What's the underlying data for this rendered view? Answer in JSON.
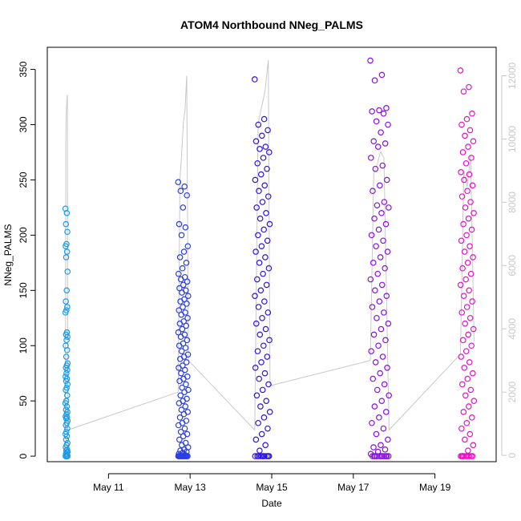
{
  "chart_data": {
    "type": "scatter",
    "title": "ATOM4 Northbound NNeg_PALMS",
    "xlabel": "Date",
    "ylabel": "NNeg_PALMS",
    "xlim": [
      "2018-05-09T12:00",
      "2018-05-20T12:00"
    ],
    "ylim": [
      -5,
      370
    ],
    "y2lim": [
      -200,
      12900
    ],
    "x_ticks": [
      {
        "date": "2018-05-11",
        "label": "May 11"
      },
      {
        "date": "2018-05-13",
        "label": "May 13"
      },
      {
        "date": "2018-05-15",
        "label": "May 15"
      },
      {
        "date": "2018-05-17",
        "label": "May 17"
      },
      {
        "date": "2018-05-19",
        "label": "May 19"
      }
    ],
    "y_ticks": [
      0,
      50,
      100,
      150,
      200,
      250,
      300,
      350
    ],
    "y2_ticks": [
      0,
      2000,
      4000,
      6000,
      8000,
      10000,
      12000
    ],
    "grid": false,
    "legend": "none",
    "colors": {
      "series_1": "#1e9be8",
      "series_2": "#2a3fe0",
      "series_3": "#2f14e6",
      "series_4": "#8a10e8",
      "series_5": "#e812c8",
      "line": "#c8c8c8",
      "axis": "#000000",
      "axis_right": "#c8c8c8"
    },
    "series": [
      {
        "x_start": "2018-05-09T22:40",
        "x_end": "2018-05-10T00:00",
        "values": [
          224,
          220,
          210,
          203,
          192,
          190,
          185,
          180,
          167,
          150,
          140,
          135,
          132,
          130,
          112,
          110,
          108,
          105,
          100,
          96,
          90,
          84,
          82,
          80,
          78,
          75,
          72,
          70,
          68,
          65,
          62,
          60,
          55,
          50,
          48,
          45,
          42,
          40,
          38,
          36,
          35,
          34,
          32,
          30,
          28,
          25,
          22,
          20,
          18,
          15,
          12,
          10,
          8,
          6,
          5,
          4,
          3,
          2,
          1,
          0,
          0,
          0,
          0,
          0
        ]
      },
      {
        "x_start": "2018-05-12T17:00",
        "x_end": "2018-05-12T23:00",
        "values": [
          248,
          244,
          240,
          236,
          225,
          210,
          207,
          200,
          190,
          185,
          180,
          175,
          170,
          165,
          162,
          160,
          158,
          155,
          152,
          150,
          148,
          145,
          142,
          140,
          138,
          135,
          132,
          130,
          128,
          125,
          122,
          120,
          118,
          115,
          112,
          110,
          108,
          105,
          102,
          100,
          98,
          95,
          92,
          90,
          88,
          85,
          82,
          80,
          78,
          75,
          72,
          70,
          68,
          65,
          62,
          60,
          58,
          55,
          52,
          50,
          48,
          45,
          42,
          40,
          38,
          35,
          32,
          30,
          28,
          25,
          22,
          20,
          18,
          15,
          12,
          10,
          8,
          6,
          5,
          4,
          3,
          2,
          1,
          0,
          0,
          0,
          0,
          0,
          0,
          0,
          0,
          0,
          0,
          0,
          0,
          0
        ]
      },
      {
        "x_start": "2018-05-14T14:00",
        "x_end": "2018-05-14T23:00",
        "values": [
          341,
          305,
          300,
          295,
          290,
          285,
          280,
          278,
          275,
          270,
          265,
          260,
          255,
          250,
          245,
          240,
          235,
          230,
          225,
          220,
          215,
          210,
          205,
          200,
          195,
          190,
          185,
          180,
          175,
          170,
          165,
          160,
          155,
          150,
          145,
          140,
          135,
          130,
          125,
          120,
          115,
          110,
          105,
          100,
          95,
          90,
          85,
          80,
          75,
          70,
          65,
          60,
          55,
          50,
          45,
          40,
          35,
          30,
          25,
          20,
          15,
          10,
          5,
          0,
          0,
          0,
          0,
          0,
          0,
          0,
          0,
          0,
          0
        ]
      },
      {
        "x_start": "2018-05-17T10:00",
        "x_end": "2018-05-17T21:00",
        "values": [
          358,
          345,
          340,
          315,
          313,
          312,
          310,
          303,
          300,
          293,
          285,
          283,
          280,
          270,
          263,
          260,
          250,
          245,
          240,
          230,
          227,
          225,
          220,
          215,
          210,
          205,
          200,
          195,
          190,
          185,
          180,
          175,
          170,
          165,
          160,
          155,
          150,
          145,
          140,
          135,
          130,
          125,
          120,
          115,
          110,
          105,
          100,
          95,
          90,
          85,
          80,
          75,
          70,
          65,
          60,
          55,
          50,
          45,
          40,
          35,
          30,
          25,
          20,
          15,
          10,
          8,
          6,
          4,
          2,
          0,
          0,
          0,
          0,
          0,
          0,
          0,
          0,
          0,
          0,
          0
        ]
      },
      {
        "x_start": "2018-05-19T15:00",
        "x_end": "2018-05-19T23:00",
        "values": [
          349,
          334,
          330,
          310,
          305,
          300,
          295,
          290,
          285,
          280,
          275,
          270,
          265,
          257,
          255,
          250,
          245,
          240,
          235,
          230,
          225,
          220,
          215,
          210,
          205,
          200,
          195,
          190,
          185,
          180,
          175,
          170,
          165,
          160,
          155,
          150,
          145,
          140,
          135,
          130,
          125,
          120,
          115,
          110,
          105,
          100,
          95,
          90,
          85,
          80,
          75,
          70,
          65,
          60,
          55,
          50,
          45,
          40,
          35,
          30,
          25,
          20,
          15,
          10,
          5,
          0,
          0,
          0,
          0,
          0,
          0,
          0,
          0,
          0
        ]
      }
    ],
    "line_series": {
      "axis": "right",
      "points": [
        {
          "x": "2018-05-09T22:40",
          "y": 800
        },
        {
          "x": "2018-05-09T22:55",
          "y": 10200
        },
        {
          "x": "2018-05-09T23:10",
          "y": 10800
        },
        {
          "x": "2018-05-09T23:30",
          "y": 11200
        },
        {
          "x": "2018-05-09T23:50",
          "y": 11400
        },
        {
          "x": "2018-05-10T00:00",
          "y": 800
        },
        {
          "x": "2018-05-12T17:00",
          "y": 2000
        },
        {
          "x": "2018-05-12T18:00",
          "y": 8700
        },
        {
          "x": "2018-05-12T19:00",
          "y": 9500
        },
        {
          "x": "2018-05-12T20:00",
          "y": 10500
        },
        {
          "x": "2018-05-12T21:00",
          "y": 10900
        },
        {
          "x": "2018-05-12T22:00",
          "y": 12000
        },
        {
          "x": "2018-05-12T23:00",
          "y": 3000
        },
        {
          "x": "2018-05-14T14:00",
          "y": 800
        },
        {
          "x": "2018-05-14T16:00",
          "y": 10500
        },
        {
          "x": "2018-05-14T18:00",
          "y": 11000
        },
        {
          "x": "2018-05-14T20:00",
          "y": 11500
        },
        {
          "x": "2018-05-14T22:00",
          "y": 12500
        },
        {
          "x": "2018-05-14T23:00",
          "y": 2200
        },
        {
          "x": "2018-05-17T10:00",
          "y": 3000
        },
        {
          "x": "2018-05-17T12:00",
          "y": 8900
        },
        {
          "x": "2018-05-17T14:00",
          "y": 9200
        },
        {
          "x": "2018-05-17T16:00",
          "y": 9600
        },
        {
          "x": "2018-05-17T18:00",
          "y": 9400
        },
        {
          "x": "2018-05-17T21:00",
          "y": 800
        },
        {
          "x": "2018-05-19T15:00",
          "y": 3200
        },
        {
          "x": "2018-05-19T17:00",
          "y": 9000
        },
        {
          "x": "2018-05-19T19:00",
          "y": 8500
        },
        {
          "x": "2018-05-19T21:00",
          "y": 9500
        },
        {
          "x": "2018-05-19T23:00",
          "y": 3600
        }
      ]
    }
  }
}
